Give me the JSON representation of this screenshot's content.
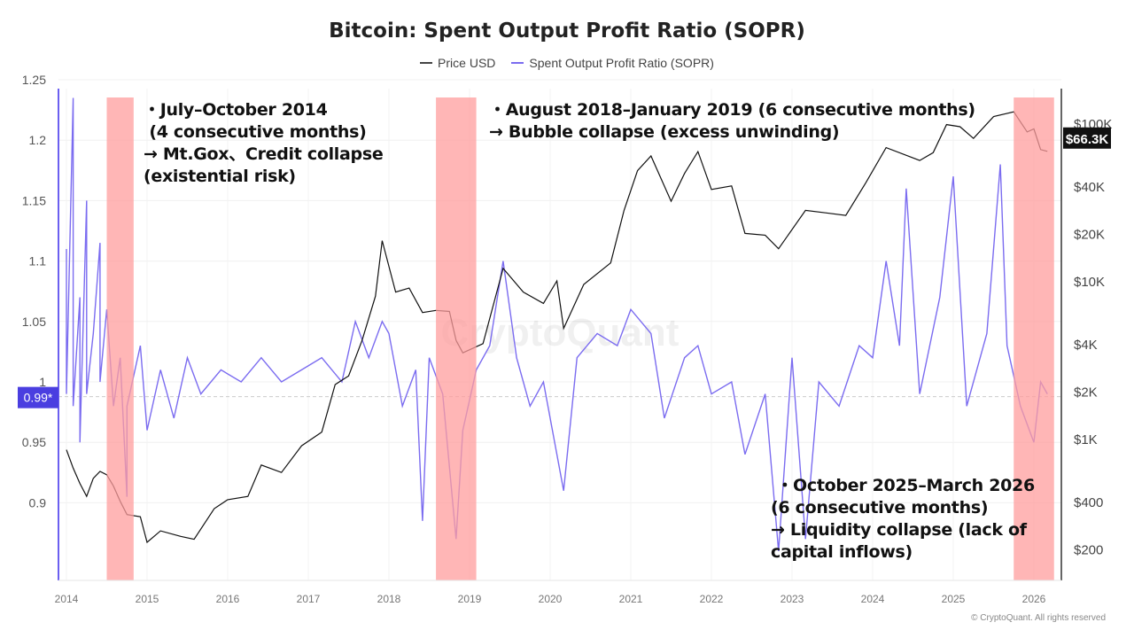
{
  "chart_data": {
    "type": "line",
    "title": "Bitcoin: Spent Output Profit Ratio (SOPR)",
    "legend_placement": "top-center",
    "grid": true,
    "x_ticks": [
      "2014",
      "2015",
      "2016",
      "2017",
      "2018",
      "2019",
      "2020",
      "2021",
      "2022",
      "2023",
      "2024",
      "2025",
      "2026"
    ],
    "left_axis": {
      "ticks": [
        "1.25",
        "1.2",
        "1.15",
        "1.1",
        "1.05",
        "1",
        "0.95",
        "0.9"
      ],
      "range": [
        0.86,
        1.255
      ],
      "current_label": "0.99*"
    },
    "right_axis": {
      "scale": "log",
      "ticks": [
        "$100K",
        "$40K",
        "$20K",
        "$10K",
        "$4K",
        "$2K",
        "$1K",
        "$400",
        "$200"
      ],
      "current_label": "$66.3K"
    },
    "series": [
      {
        "name": "Price USD",
        "color": "#111111",
        "axis": "right",
        "points": [
          [
            "2014-01",
            850
          ],
          [
            "2014-02",
            650
          ],
          [
            "2014-03",
            520
          ],
          [
            "2014-04",
            430
          ],
          [
            "2014-05",
            560
          ],
          [
            "2014-06",
            620
          ],
          [
            "2014-07",
            590
          ],
          [
            "2014-08",
            500
          ],
          [
            "2014-09",
            400
          ],
          [
            "2014-10",
            330
          ],
          [
            "2014-12",
            320
          ],
          [
            "2015-01",
            220
          ],
          [
            "2015-03",
            260
          ],
          [
            "2015-06",
            240
          ],
          [
            "2015-08",
            230
          ],
          [
            "2015-11",
            360
          ],
          [
            "2016-01",
            410
          ],
          [
            "2016-04",
            430
          ],
          [
            "2016-06",
            680
          ],
          [
            "2016-09",
            610
          ],
          [
            "2016-12",
            900
          ],
          [
            "2017-03",
            1100
          ],
          [
            "2017-05",
            2200
          ],
          [
            "2017-07",
            2500
          ],
          [
            "2017-09",
            4200
          ],
          [
            "2017-11",
            8000
          ],
          [
            "2017-12",
            18000
          ],
          [
            "2018-02",
            8500
          ],
          [
            "2018-04",
            9000
          ],
          [
            "2018-06",
            6300
          ],
          [
            "2018-08",
            6500
          ],
          [
            "2018-10",
            6400
          ],
          [
            "2018-11",
            4200
          ],
          [
            "2018-12",
            3500
          ],
          [
            "2019-03",
            4000
          ],
          [
            "2019-06",
            12000
          ],
          [
            "2019-09",
            8500
          ],
          [
            "2019-12",
            7200
          ],
          [
            "2020-02",
            10000
          ],
          [
            "2020-03",
            5000
          ],
          [
            "2020-06",
            9500
          ],
          [
            "2020-10",
            13000
          ],
          [
            "2020-12",
            28000
          ],
          [
            "2021-02",
            50000
          ],
          [
            "2021-04",
            62000
          ],
          [
            "2021-07",
            32000
          ],
          [
            "2021-09",
            48000
          ],
          [
            "2021-11",
            66000
          ],
          [
            "2022-01",
            38000
          ],
          [
            "2022-04",
            40000
          ],
          [
            "2022-06",
            20000
          ],
          [
            "2022-09",
            19500
          ],
          [
            "2022-11",
            16000
          ],
          [
            "2023-03",
            28000
          ],
          [
            "2023-06",
            27000
          ],
          [
            "2023-09",
            26000
          ],
          [
            "2023-12",
            42000
          ],
          [
            "2024-03",
            70000
          ],
          [
            "2024-08",
            58000
          ],
          [
            "2024-10",
            65000
          ],
          [
            "2024-12",
            98000
          ],
          [
            "2025-02",
            95000
          ],
          [
            "2025-04",
            80000
          ],
          [
            "2025-07",
            110000
          ],
          [
            "2025-10",
            118000
          ],
          [
            "2025-12",
            88000
          ],
          [
            "2026-01",
            92000
          ],
          [
            "2026-02",
            68000
          ],
          [
            "2026-03",
            66300
          ]
        ]
      },
      {
        "name": "Spent Output Profit Ratio (SOPR)",
        "color": "#7b6cf0",
        "axis": "left",
        "points": [
          [
            "2014-01",
            1.0
          ],
          [
            "2014-01",
            1.11
          ],
          [
            "2014-01",
            0.99
          ],
          [
            "2014-02",
            1.235
          ],
          [
            "2014-02",
            0.98
          ],
          [
            "2014-03",
            1.07
          ],
          [
            "2014-03",
            0.95
          ],
          [
            "2014-04",
            1.15
          ],
          [
            "2014-04",
            0.99
          ],
          [
            "2014-05",
            1.04
          ],
          [
            "2014-06",
            1.115
          ],
          [
            "2014-06",
            1.0
          ],
          [
            "2014-07",
            1.06
          ],
          [
            "2014-08",
            0.98
          ],
          [
            "2014-09",
            1.02
          ],
          [
            "2014-10",
            0.905
          ],
          [
            "2014-10",
            0.98
          ],
          [
            "2014-12",
            1.03
          ],
          [
            "2015-01",
            0.96
          ],
          [
            "2015-03",
            1.01
          ],
          [
            "2015-05",
            0.97
          ],
          [
            "2015-07",
            1.02
          ],
          [
            "2015-09",
            0.99
          ],
          [
            "2015-12",
            1.01
          ],
          [
            "2016-03",
            1.0
          ],
          [
            "2016-06",
            1.02
          ],
          [
            "2016-09",
            1.0
          ],
          [
            "2016-12",
            1.01
          ],
          [
            "2017-03",
            1.02
          ],
          [
            "2017-06",
            1.0
          ],
          [
            "2017-08",
            1.05
          ],
          [
            "2017-10",
            1.02
          ],
          [
            "2017-12",
            1.05
          ],
          [
            "2018-01",
            1.04
          ],
          [
            "2018-03",
            0.98
          ],
          [
            "2018-05",
            1.01
          ],
          [
            "2018-06",
            0.885
          ],
          [
            "2018-07",
            1.02
          ],
          [
            "2018-09",
            0.99
          ],
          [
            "2018-11",
            0.87
          ],
          [
            "2018-12",
            0.96
          ],
          [
            "2019-02",
            1.01
          ],
          [
            "2019-04",
            1.03
          ],
          [
            "2019-06",
            1.1
          ],
          [
            "2019-08",
            1.02
          ],
          [
            "2019-10",
            0.98
          ],
          [
            "2019-12",
            1.0
          ],
          [
            "2020-03",
            0.91
          ],
          [
            "2020-05",
            1.02
          ],
          [
            "2020-08",
            1.04
          ],
          [
            "2020-11",
            1.03
          ],
          [
            "2021-01",
            1.06
          ],
          [
            "2021-04",
            1.04
          ],
          [
            "2021-06",
            0.97
          ],
          [
            "2021-09",
            1.02
          ],
          [
            "2021-11",
            1.03
          ],
          [
            "2022-01",
            0.99
          ],
          [
            "2022-04",
            1.0
          ],
          [
            "2022-06",
            0.94
          ],
          [
            "2022-09",
            0.99
          ],
          [
            "2022-11",
            0.86
          ],
          [
            "2023-01",
            1.02
          ],
          [
            "2023-03",
            0.87
          ],
          [
            "2023-05",
            1.0
          ],
          [
            "2023-08",
            0.98
          ],
          [
            "2023-11",
            1.03
          ],
          [
            "2024-01",
            1.02
          ],
          [
            "2024-03",
            1.1
          ],
          [
            "2024-05",
            1.03
          ],
          [
            "2024-06",
            1.16
          ],
          [
            "2024-08",
            0.99
          ],
          [
            "2024-11",
            1.07
          ],
          [
            "2025-01",
            1.17
          ],
          [
            "2025-03",
            0.98
          ],
          [
            "2025-06",
            1.04
          ],
          [
            "2025-08",
            1.18
          ],
          [
            "2025-09",
            1.03
          ],
          [
            "2025-11",
            0.98
          ],
          [
            "2026-01",
            0.95
          ],
          [
            "2026-02",
            1.0
          ],
          [
            "2026-03",
            0.99
          ]
        ]
      }
    ],
    "shaded_periods": [
      [
        "2014-07",
        "2014-11"
      ],
      [
        "2018-08",
        "2019-02"
      ],
      [
        "2025-10",
        "2026-04"
      ]
    ],
    "annotations": [
      "・July–October 2014\n (4 consecutive months)\n→ Mt.Gox、Credit collapse\n(existential risk)",
      "・August 2018–January 2019 (6 consecutive months)\n→ Bubble collapse (excess unwinding)",
      " ・October 2025–March 2026\n(6 consecutive months)\n→ Liquidity collapse (lack of\ncapital inflows)"
    ]
  },
  "watermark": "CryptoQuant",
  "copyright": "© CryptoQuant. All rights reserved",
  "colors": {
    "sopr": "#7b6cf0",
    "price": "#111111",
    "shade": "#ff9e9e",
    "badge": "#4a3ee0"
  }
}
